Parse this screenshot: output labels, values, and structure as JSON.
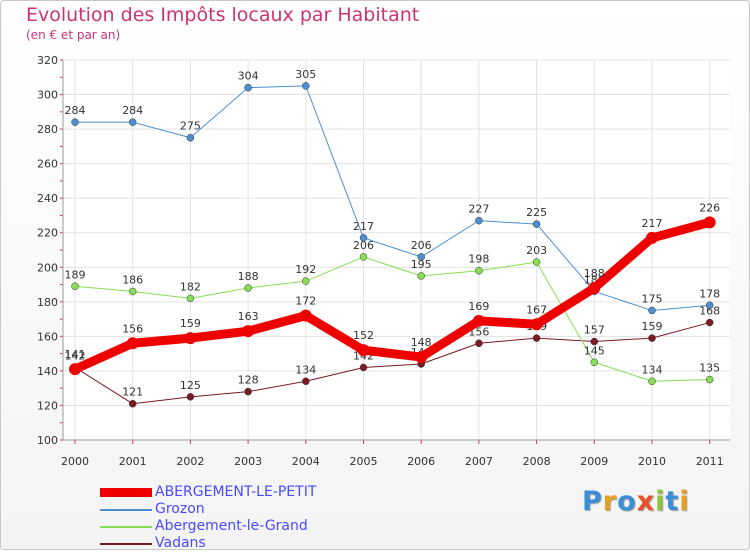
{
  "chart_data": {
    "type": "line",
    "title": "Evolution des Impôts locaux par Habitant",
    "subtitle": "(en € et par an)",
    "x": [
      "2000",
      "2001",
      "2002",
      "2003",
      "2004",
      "2005",
      "2006",
      "2007",
      "2008",
      "2009",
      "2010",
      "2011"
    ],
    "ylim": [
      100,
      320
    ],
    "yticks": [
      100,
      120,
      140,
      160,
      180,
      200,
      220,
      240,
      260,
      280,
      300,
      320
    ],
    "grid": true,
    "legend_position": "bottom-left",
    "series": [
      {
        "name": "ABERGEMENT-LE-PETIT",
        "color": "#ee0000",
        "values": [
          141,
          156,
          159,
          163,
          172,
          152,
          148,
          169,
          167,
          188,
          217,
          226
        ]
      },
      {
        "name": "Grozon",
        "color": "#4d90d0",
        "values": [
          284,
          284,
          275,
          304,
          305,
          217,
          206,
          227,
          225,
          186,
          175,
          178
        ]
      },
      {
        "name": "Abergement-le-Grand",
        "color": "#88dd55",
        "values": [
          189,
          186,
          182,
          188,
          192,
          206,
          195,
          198,
          203,
          145,
          134,
          135
        ]
      },
      {
        "name": "Vadans",
        "color": "#7a1a22",
        "values": [
          142,
          121,
          125,
          128,
          134,
          142,
          144,
          156,
          159,
          157,
          159,
          168
        ]
      }
    ]
  },
  "logo": {
    "letters": [
      "P",
      "r",
      "o",
      "x",
      "i",
      "t",
      "i"
    ]
  }
}
